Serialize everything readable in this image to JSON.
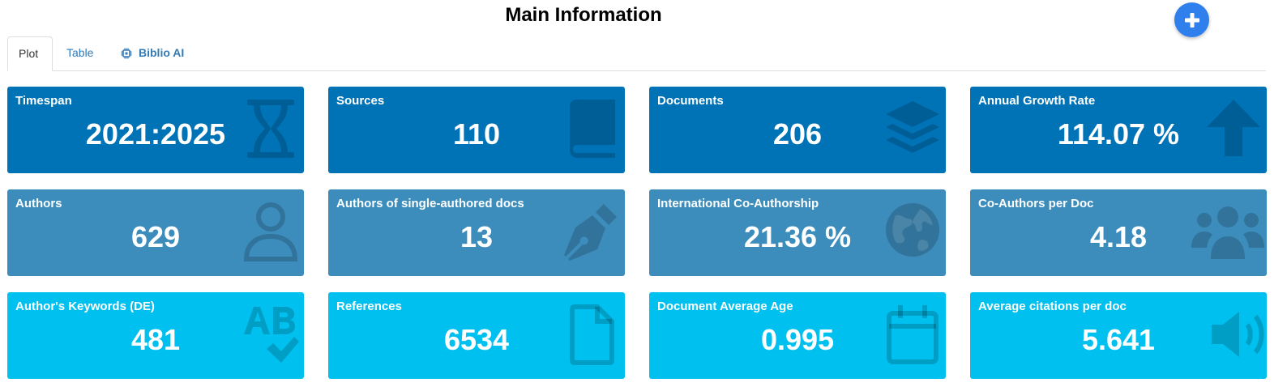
{
  "header": {
    "title": "Main Information"
  },
  "tabs": [
    {
      "label": "Plot",
      "active": true
    },
    {
      "label": "Table",
      "active": false
    },
    {
      "label": "Biblio AI",
      "active": false
    }
  ],
  "colors": {
    "row1": "#0073b7",
    "row2": "#3c8dbc",
    "row3": "#00c0ef",
    "fab": "#2f80ed",
    "link": "#337ab7"
  },
  "cards": [
    {
      "label": "Timespan",
      "value": "2021:2025",
      "icon": "hourglass-icon"
    },
    {
      "label": "Sources",
      "value": "110",
      "icon": "book-icon"
    },
    {
      "label": "Documents",
      "value": "206",
      "icon": "layers-icon"
    },
    {
      "label": "Annual Growth Rate",
      "value": "114.07 %",
      "icon": "arrow-up-icon"
    },
    {
      "label": "Authors",
      "value": "629",
      "icon": "user-icon"
    },
    {
      "label": "Authors of single-authored docs",
      "value": "13",
      "icon": "pen-nib-icon"
    },
    {
      "label": "International Co-Authorship",
      "value": "21.36 %",
      "icon": "globe-icon"
    },
    {
      "label": "Co-Authors per Doc",
      "value": "4.18",
      "icon": "users-icon"
    },
    {
      "label": "Author's Keywords (DE)",
      "value": "481",
      "icon": "spell-check-icon"
    },
    {
      "label": "References",
      "value": "6534",
      "icon": "file-icon"
    },
    {
      "label": "Document Average Age",
      "value": "0.995",
      "icon": "calendar-icon"
    },
    {
      "label": "Average citations per doc",
      "value": "5.641",
      "icon": "volume-icon"
    }
  ]
}
